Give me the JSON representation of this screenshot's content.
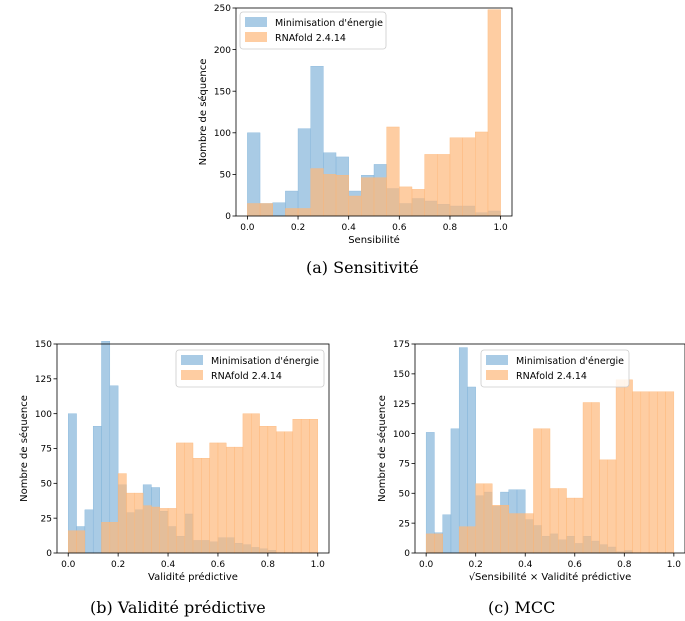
{
  "captions": [
    "(a)  Sensitivité",
    "(b)  Validité prédictive",
    "(c)  MCC"
  ],
  "colors": {
    "energy": "#84b5da",
    "rnafold": "#fdb87b",
    "axis": "#000000"
  },
  "chart_data": [
    {
      "type": "bar",
      "xlabel": "Sensibilité",
      "ylabel": "Nombre de séquence",
      "xlim": [
        0,
        1
      ],
      "ylim": [
        0,
        250
      ],
      "xticks": [
        0.0,
        0.2,
        0.4,
        0.6,
        0.8,
        1.0
      ],
      "yticks": [
        0,
        50,
        100,
        150,
        200,
        250
      ],
      "legend": "top-left",
      "bins_x": [
        0,
        0.05,
        0.1,
        0.15,
        0.2,
        0.25,
        0.3,
        0.35,
        0.4,
        0.45,
        0.5,
        0.55,
        0.6,
        0.65,
        0.7,
        0.75,
        0.8,
        0.85,
        0.9,
        0.95,
        1.0
      ],
      "series": [
        {
          "name": "Minimisation d'énergie",
          "values": [
            100,
            15,
            16,
            30,
            105,
            180,
            76,
            71,
            30,
            49,
            62,
            33,
            15,
            21,
            18,
            14,
            12,
            12,
            4,
            6
          ]
        },
        {
          "name": "RNAfold 2.4.14",
          "values": [
            15,
            15,
            0,
            9,
            9,
            57,
            50,
            49,
            24,
            46,
            46,
            107,
            35,
            32,
            74,
            74,
            94,
            94,
            101,
            248
          ]
        }
      ]
    },
    {
      "type": "bar",
      "xlabel": "Validité prédictive",
      "ylabel": "Nombre de séquence",
      "xlim": [
        0,
        1
      ],
      "ylim": [
        0,
        150
      ],
      "xticks": [
        0.0,
        0.2,
        0.4,
        0.6,
        0.8,
        1.0
      ],
      "yticks": [
        0,
        25,
        50,
        75,
        100,
        125,
        150
      ],
      "legend": "top-right",
      "bins_x": [
        0,
        0.0333,
        0.0667,
        0.1,
        0.1333,
        0.1667,
        0.2,
        0.2333,
        0.2667,
        0.3,
        0.3333,
        0.3667,
        0.4,
        0.4333,
        0.4667,
        0.5,
        0.5333,
        0.5667,
        0.6,
        0.6333,
        0.6667,
        0.7,
        0.7333,
        0.7667,
        0.8,
        0.8333,
        0.8667,
        0.9,
        0.9333,
        0.9667,
        1.0
      ],
      "series": [
        {
          "name": "Minimisation d'énergie",
          "values": [
            100,
            19,
            31,
            91,
            152,
            120,
            49,
            29,
            31,
            49,
            47,
            30,
            19,
            12,
            28,
            9,
            9,
            8,
            11,
            11,
            7,
            6,
            4,
            3,
            2,
            0,
            0,
            0,
            0,
            0
          ]
        },
        {
          "name": "RNAfold 2.4.14",
          "values": [
            16,
            16,
            0,
            0,
            22,
            22,
            57,
            43,
            43,
            34,
            33,
            32,
            32,
            79,
            79,
            68,
            68,
            79,
            79,
            76,
            76,
            100,
            100,
            91,
            91,
            87,
            87,
            96,
            96,
            96
          ]
        }
      ]
    },
    {
      "type": "bar",
      "xlabel": "√Sensibilité × Validité prédictive",
      "ylabel": "Nombre de séquence",
      "xlim": [
        0,
        1
      ],
      "ylim": [
        0,
        175
      ],
      "xticks": [
        0.0,
        0.2,
        0.4,
        0.6,
        0.8,
        1.0
      ],
      "yticks": [
        0,
        25,
        50,
        75,
        100,
        125,
        150,
        175
      ],
      "legend": "top-right",
      "bins_x": [
        0,
        0.0333,
        0.0667,
        0.1,
        0.1333,
        0.1667,
        0.2,
        0.2333,
        0.2667,
        0.3,
        0.3333,
        0.3667,
        0.4,
        0.4333,
        0.4667,
        0.5,
        0.5333,
        0.5667,
        0.6,
        0.6333,
        0.6667,
        0.7,
        0.7333,
        0.7667,
        0.8,
        0.8333,
        0.8667,
        0.9,
        0.9333,
        0.9667,
        1.0
      ],
      "series": [
        {
          "name": "Minimisation d'énergie",
          "values": [
            101,
            17,
            32,
            104,
            172,
            139,
            48,
            51,
            39,
            51,
            53,
            53,
            28,
            23,
            14,
            16,
            11,
            14,
            8,
            14,
            10,
            7,
            5,
            1,
            2,
            0,
            0,
            0,
            0,
            0
          ]
        },
        {
          "name": "RNAfold 2.4.14",
          "values": [
            16,
            16,
            0,
            0,
            22,
            22,
            58,
            58,
            40,
            40,
            33,
            33,
            33,
            104,
            104,
            54,
            54,
            46,
            46,
            126,
            126,
            78,
            78,
            145,
            145,
            135,
            135,
            135,
            135,
            135
          ]
        }
      ]
    }
  ]
}
